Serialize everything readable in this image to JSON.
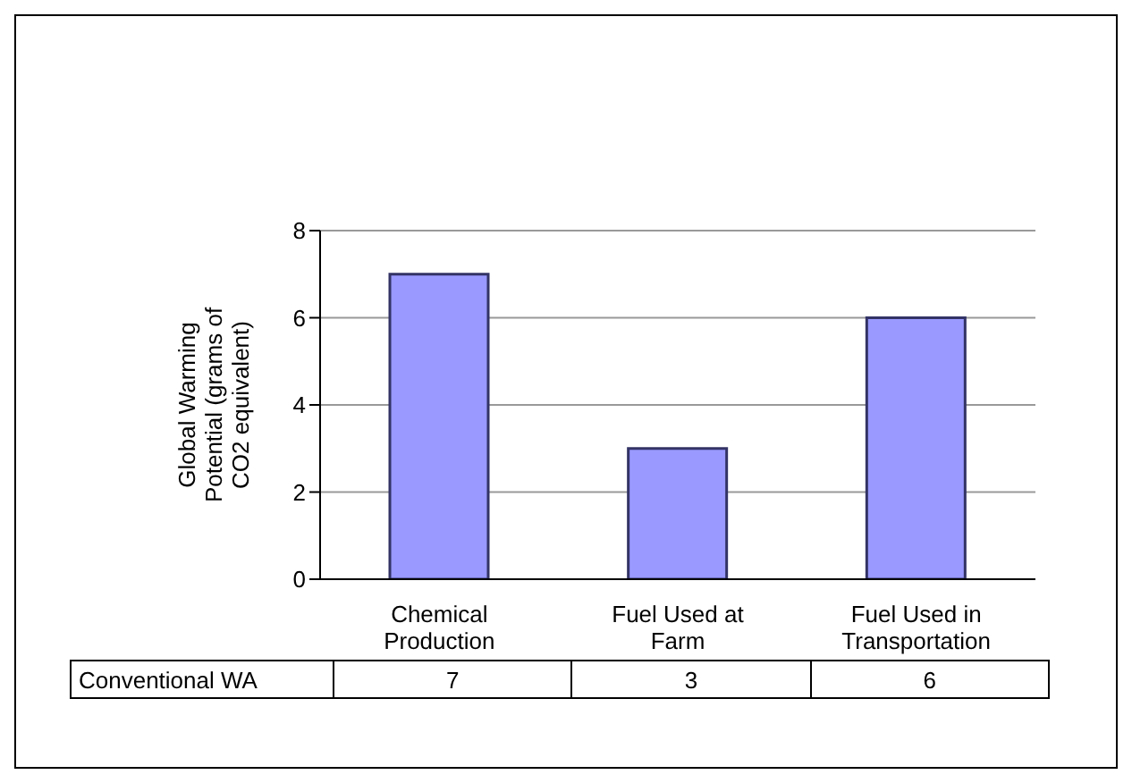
{
  "chart_data": {
    "type": "bar",
    "categories": [
      "Chemical Production",
      "Fuel Used at Farm",
      "Fuel Used in Transportation"
    ],
    "series": [
      {
        "name": "Conventional WA",
        "color": "#9999ff",
        "values": [
          7,
          3,
          6
        ]
      }
    ],
    "ylabel": "Global Warming Potential (grams of CO2 equivalent)",
    "ylim": [
      0,
      8
    ],
    "yticks": [
      0,
      2,
      4,
      6,
      8
    ],
    "grid": "y",
    "legend": false,
    "data_labels": true
  }
}
